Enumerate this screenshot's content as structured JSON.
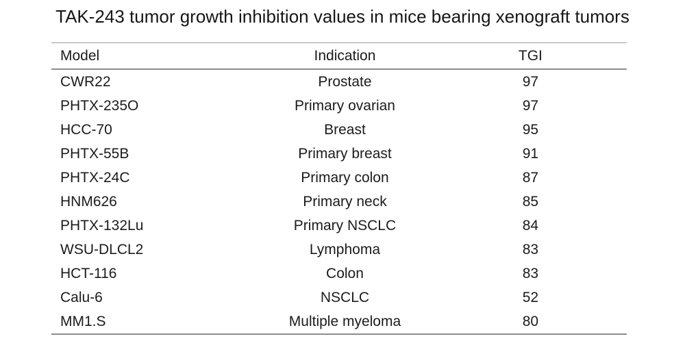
{
  "title": "TAK-243 tumor growth inhibition values in mice bearing xenograft tumors",
  "table": {
    "headers": [
      "Model",
      "Indication",
      "TGI"
    ],
    "rows": [
      [
        "CWR22",
        "Prostate",
        "97"
      ],
      [
        "PHTX-235O",
        "Primary ovarian",
        "97"
      ],
      [
        "HCC-70",
        "Breast",
        "95"
      ],
      [
        "PHTX-55B",
        "Primary breast",
        "91"
      ],
      [
        "PHTX-24C",
        "Primary colon",
        "87"
      ],
      [
        "HNM626",
        "Primary neck",
        "85"
      ],
      [
        "PHTX-132Lu",
        "Primary NSCLC",
        "84"
      ],
      [
        "WSU-DLCL2",
        "Lymphoma",
        "83"
      ],
      [
        "HCT-116",
        "Colon",
        "83"
      ],
      [
        "Calu-6",
        "NSCLC",
        "52"
      ],
      [
        "MM1.S",
        "Multiple myeloma",
        "80"
      ]
    ]
  },
  "chart_data": {
    "type": "table",
    "title": "TAK-243 tumor growth inhibition values in mice bearing xenograft tumors",
    "columns": [
      "Model",
      "Indication",
      "TGI"
    ],
    "rows": [
      {
        "model": "CWR22",
        "indication": "Prostate",
        "tgi": 97
      },
      {
        "model": "PHTX-235O",
        "indication": "Primary ovarian",
        "tgi": 97
      },
      {
        "model": "HCC-70",
        "indication": "Breast",
        "tgi": 95
      },
      {
        "model": "PHTX-55B",
        "indication": "Primary breast",
        "tgi": 91
      },
      {
        "model": "PHTX-24C",
        "indication": "Primary colon",
        "tgi": 87
      },
      {
        "model": "HNM626",
        "indication": "Primary neck",
        "tgi": 85
      },
      {
        "model": "PHTX-132Lu",
        "indication": "Primary NSCLC",
        "tgi": 84
      },
      {
        "model": "WSU-DLCL2",
        "indication": "Lymphoma",
        "tgi": 83
      },
      {
        "model": "HCT-116",
        "indication": "Colon",
        "tgi": 83
      },
      {
        "model": "Calu-6",
        "indication": "NSCLC",
        "tgi": 52
      },
      {
        "model": "MM1.S",
        "indication": "Multiple myeloma",
        "tgi": 80
      }
    ],
    "layout": {
      "rules": "horizontal-only",
      "model_align": "left",
      "indication_align": "center",
      "tgi_align": "center"
    }
  },
  "colors": {
    "background": "#ffffff",
    "text": "#1b1b1b",
    "rule": "#8c8c8c"
  }
}
